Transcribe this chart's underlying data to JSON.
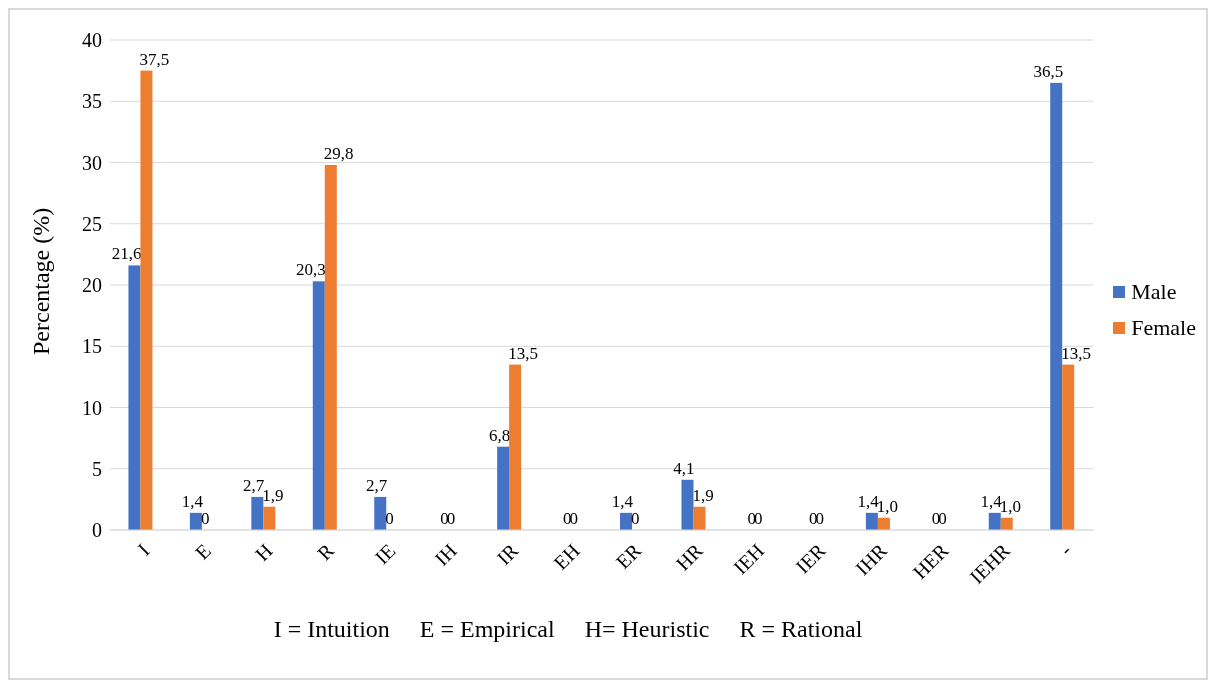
{
  "chart_data": {
    "type": "bar",
    "ylabel": "Percentage (%)",
    "categories": [
      "I",
      "E",
      "H",
      "R",
      "IE",
      "IH",
      "IR",
      "EH",
      "ER",
      "HR",
      "IEH",
      "IER",
      "IHR",
      "HER",
      "IEHR",
      "-"
    ],
    "series": [
      {
        "name": "Male",
        "color": "#4472c4",
        "values": [
          21.6,
          1.4,
          2.7,
          20.3,
          2.7,
          0,
          6.8,
          0,
          1.4,
          4.1,
          0,
          0,
          1.4,
          0,
          1.4,
          36.5
        ],
        "value_labels": [
          "21,6",
          "1,4",
          "2,7",
          "20,3",
          "2,7",
          "0",
          "6,8",
          "0",
          "1,4",
          "4,1",
          "0",
          "0",
          "1,4",
          "0",
          "1,4",
          "36,5"
        ]
      },
      {
        "name": "Female",
        "color": "#ed7d31",
        "values": [
          37.5,
          0,
          1.9,
          29.8,
          0,
          0,
          13.5,
          0,
          0,
          1.9,
          0,
          0,
          1.0,
          0,
          1.0,
          13.5
        ],
        "value_labels": [
          "37,5",
          "0",
          "1,9",
          "29,8",
          "0",
          "0",
          "13,5",
          "0",
          "0",
          "1,9",
          "0",
          "0",
          "1,0",
          "0",
          "1,0",
          "13,5"
        ]
      }
    ],
    "ylim": [
      0,
      40
    ],
    "yticks": [
      0,
      5,
      10,
      15,
      20,
      25,
      30,
      35,
      40
    ],
    "grid": "y",
    "legend": "right",
    "annotations": [
      "I = Intuition     E = Empirical     H= Heuristic     R = Rational"
    ]
  }
}
